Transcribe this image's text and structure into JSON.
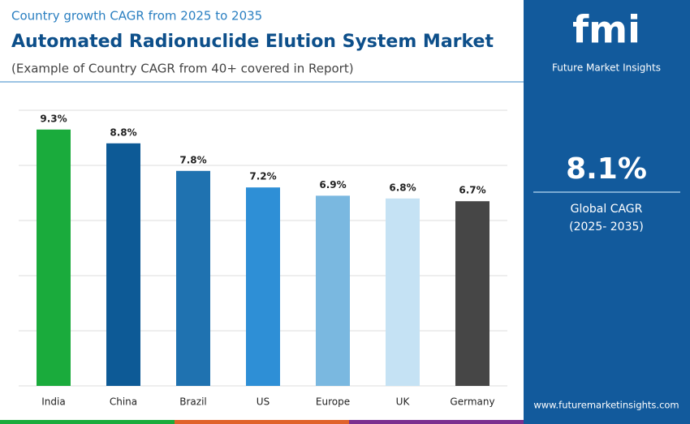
{
  "header": {
    "kicker": "Country growth CAGR from 2025 to 2035",
    "title": "Automated Radionuclide Elution System Market",
    "subtitle": "(Example of Country CAGR from 40+ covered in Report)"
  },
  "chart_data": {
    "type": "bar",
    "categories": [
      "India",
      "China",
      "Brazil",
      "US",
      "Europe",
      "UK",
      "Germany"
    ],
    "values": [
      9.3,
      8.8,
      7.8,
      7.2,
      6.9,
      6.8,
      6.7
    ],
    "value_labels": [
      "9.3%",
      "8.8%",
      "7.8%",
      "7.2%",
      "6.9%",
      "6.8%",
      "6.7%"
    ],
    "colors": [
      "#1aab3c",
      "#0d5a96",
      "#1f72b0",
      "#2e8fd6",
      "#7ab8e0",
      "#c5e2f4",
      "#464646"
    ],
    "ylim": [
      0,
      10
    ],
    "yticks": [
      0,
      2,
      4,
      6,
      8,
      10
    ],
    "grid": true
  },
  "sidebar": {
    "logo": "fmi",
    "brand": "Future Market Insights",
    "cagr_value": "8.1%",
    "cagr_label": "Global CAGR",
    "cagr_period": "(2025- 2035)",
    "website": "www.futuremarketinsights.com"
  }
}
